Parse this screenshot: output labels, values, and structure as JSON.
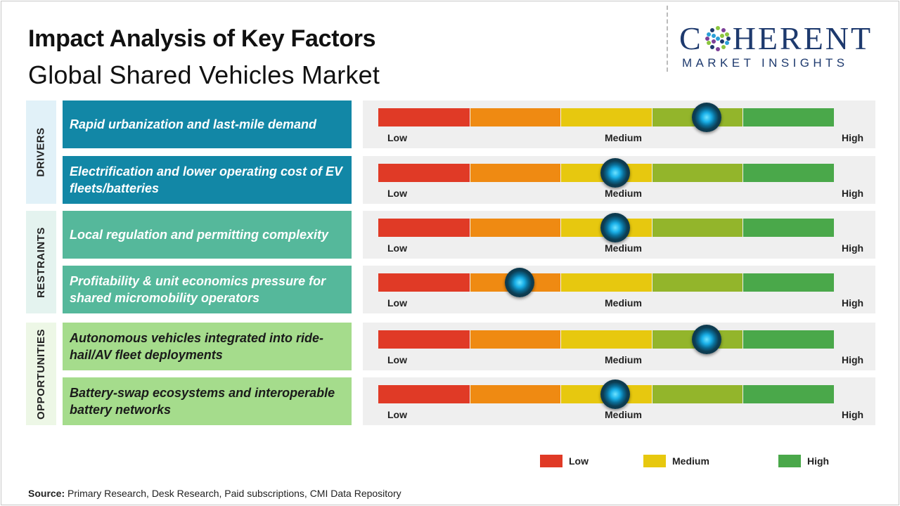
{
  "header": {
    "title": "Impact Analysis of Key Factors",
    "subtitle": "Global Shared Vehicles Market"
  },
  "logo": {
    "name": "COHERENT",
    "tagline": "MARKET INSIGHTS"
  },
  "colors": {
    "drivers_category": "#e1f1f8",
    "drivers_factor": "#1287a6",
    "restraints_category": "#e4f3ef",
    "restraints_factor": "#55b89b",
    "opportunities_category": "#edf7e6",
    "opportunities_factor": "#a5dc8c",
    "opportunities_text": "#1a1a1a",
    "scale": [
      "#e03a26",
      "#ef8a12",
      "#e7c80f",
      "#93b52b",
      "#4aa84a"
    ]
  },
  "chart_data": {
    "type": "gauge",
    "scale_labels": {
      "low": "Low",
      "medium": "Medium",
      "high": "High"
    },
    "scale_segments": 5,
    "categories": [
      {
        "name": "DRIVERS",
        "factors": [
          {
            "label": "Rapid urbanization and last-mile demand",
            "impact": 0.72
          },
          {
            "label": "Electrification and lower operating cost of EV fleets/batteries",
            "impact": 0.52
          }
        ]
      },
      {
        "name": "RESTRAINTS",
        "factors": [
          {
            "label": "Local regulation and permitting complexity",
            "impact": 0.52
          },
          {
            "label": "Profitability & unit economics pressure for shared micromobility operators",
            "impact": 0.31
          }
        ]
      },
      {
        "name": "OPPORTUNITIES",
        "factors": [
          {
            "label": "Autonomous vehicles integrated into ride-hail/AV fleet deployments",
            "impact": 0.72
          },
          {
            "label": "Battery-swap ecosystems and interoperable battery networks",
            "impact": 0.52
          }
        ]
      }
    ],
    "legend": [
      {
        "label": "Low",
        "color": "#e03a26"
      },
      {
        "label": "Medium",
        "color": "#e7c80f"
      },
      {
        "label": "High",
        "color": "#4aa84a"
      }
    ]
  },
  "footer": {
    "source_label": "Source:",
    "source_text": "Primary Research, Desk Research, Paid subscriptions, CMI Data Repository"
  }
}
